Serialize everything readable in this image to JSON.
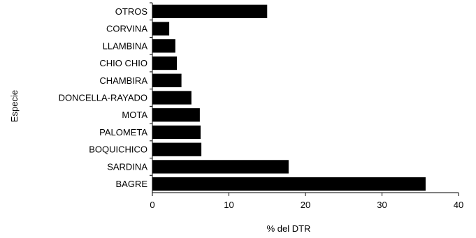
{
  "chart_data": {
    "type": "bar",
    "orientation": "horizontal",
    "title": "",
    "xlabel": "% del DTR",
    "ylabel": "Especie",
    "categories": [
      "OTROS",
      "CORVINA",
      "LLAMBINA",
      "CHIO CHIO",
      "CHAMBIRA",
      "DONCELLA-RAYADO",
      "MOTA",
      "PALOMETA",
      "BOQUICHICO",
      "SARDINA",
      "BAGRE"
    ],
    "values": [
      15.0,
      2.2,
      3.0,
      3.2,
      3.8,
      5.1,
      6.2,
      6.3,
      6.4,
      17.8,
      35.7
    ],
    "xlim": [
      0,
      40
    ],
    "xticks": [
      "0",
      "10",
      "20",
      "30",
      "40"
    ],
    "grid": false,
    "legend": "none",
    "bar_color": "#000000"
  }
}
